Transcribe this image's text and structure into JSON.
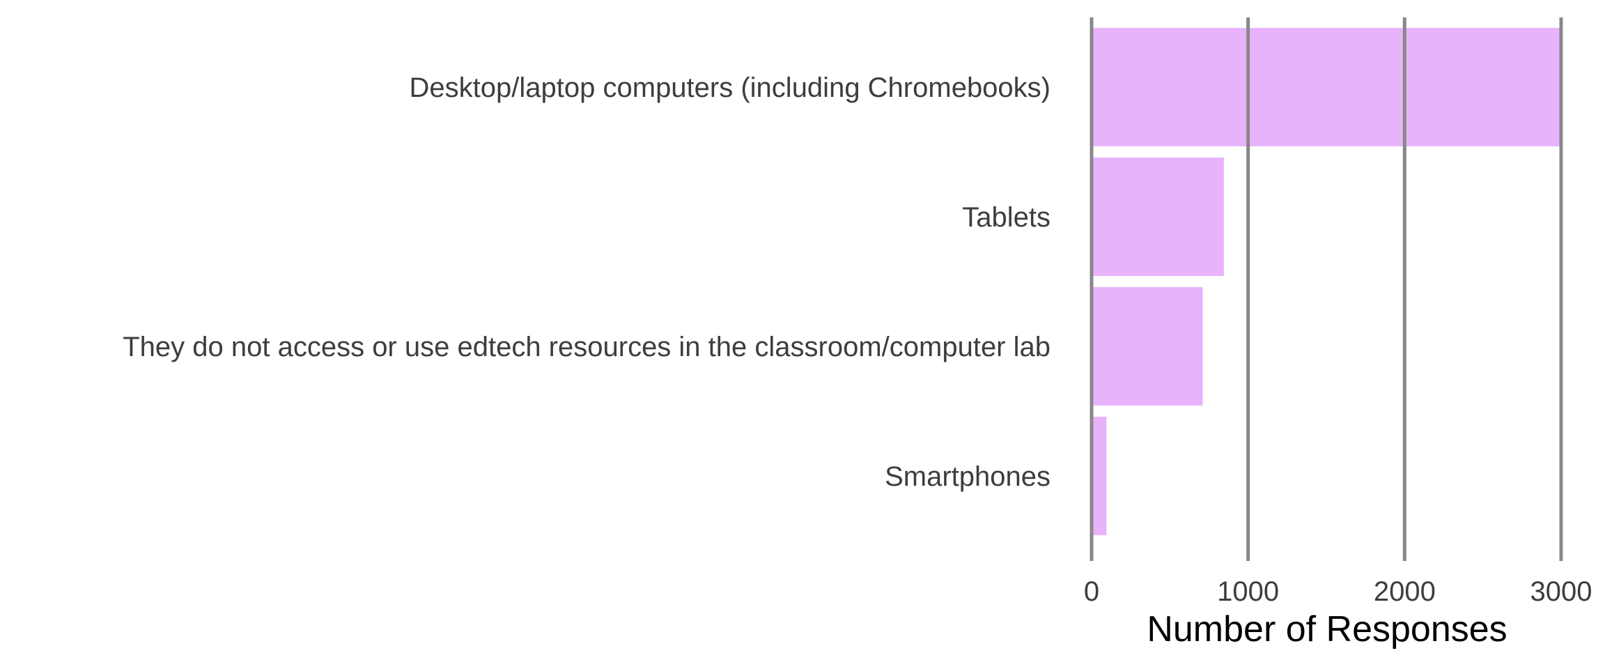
{
  "chart_data": {
    "type": "bar",
    "orientation": "horizontal",
    "categories": [
      "Desktop/laptop computers (including Chromebooks)",
      "Tablets",
      "They do not access or use edtech resources in the classroom/computer lab",
      "Smartphones"
    ],
    "values": [
      3010,
      845,
      710,
      95
    ],
    "title": "",
    "xlabel": "Number of Responses",
    "ylabel": "",
    "xlim": [
      0,
      3000
    ],
    "xticks": [
      0,
      1000,
      2000,
      3000
    ],
    "xtick_labels": [
      "0",
      "1000",
      "2000",
      "3000"
    ],
    "grid": "vertical gridlines on",
    "bar_color": "#e9b3fc",
    "grid_color": "#888888"
  }
}
